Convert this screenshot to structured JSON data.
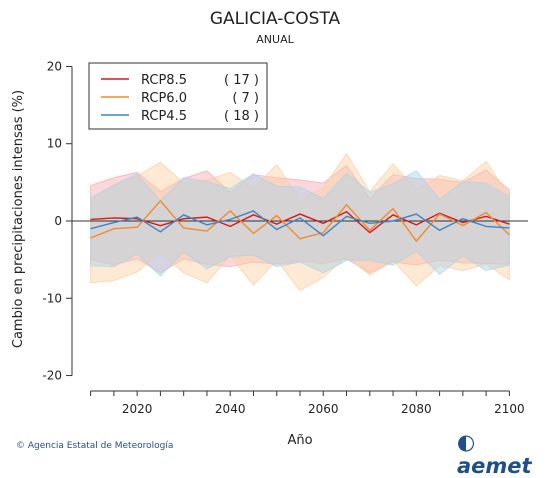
{
  "chart_data": {
    "type": "line",
    "title": "GALICIA-COSTA",
    "subtitle": "ANUAL",
    "xlabel": "Año",
    "ylabel": "Cambio en precipitaciones intensas (%)",
    "xlim": [
      2006,
      2104
    ],
    "ylim": [
      -22,
      22
    ],
    "xticks": [
      2020,
      2040,
      2060,
      2080,
      2100
    ],
    "yticks": [
      -20,
      -10,
      0,
      10,
      20
    ],
    "legend_position": "top-left",
    "series": [
      {
        "name": "RCP8.5",
        "count": "( 17 )",
        "color": "#d7191c",
        "band_color": "#f4a6b4",
        "x": [
          2010,
          2015,
          2020,
          2025,
          2030,
          2035,
          2040,
          2045,
          2050,
          2055,
          2060,
          2065,
          2070,
          2075,
          2080,
          2085,
          2090,
          2095,
          2100
        ],
        "values": [
          0.2,
          0.4,
          0.3,
          -0.6,
          0.3,
          0.5,
          -0.7,
          0.8,
          -0.4,
          0.9,
          -0.3,
          1.2,
          -1.5,
          0.8,
          -0.5,
          1.0,
          -0.2,
          0.6,
          -0.4
        ]
      },
      {
        "name": "RCP6.0",
        "count": "(  7 )",
        "color": "#f28a2e",
        "band_color": "#fbcf9f",
        "x": [
          2010,
          2015,
          2020,
          2025,
          2030,
          2035,
          2040,
          2045,
          2050,
          2055,
          2060,
          2065,
          2070,
          2075,
          2080,
          2085,
          2090,
          2095,
          2100
        ],
        "values": [
          -2.2,
          -1.0,
          -0.8,
          2.6,
          -0.9,
          -1.3,
          1.3,
          -1.6,
          0.7,
          -2.3,
          -1.5,
          2.1,
          -1.2,
          1.6,
          -2.6,
          0.9,
          -0.6,
          1.1,
          -1.8
        ]
      },
      {
        "name": "RCP4.5",
        "count": "( 18 )",
        "color": "#3d85c6",
        "band_color": "#a9d3e8",
        "x": [
          2010,
          2015,
          2020,
          2025,
          2030,
          2035,
          2040,
          2045,
          2050,
          2055,
          2060,
          2065,
          2070,
          2075,
          2080,
          2085,
          2090,
          2095,
          2100
        ],
        "values": [
          -1.0,
          -0.2,
          0.5,
          -1.4,
          0.8,
          -0.5,
          0.2,
          1.3,
          -1.1,
          0.4,
          -1.9,
          0.6,
          -0.3,
          0.0,
          0.9,
          -1.2,
          0.3,
          -0.7,
          -0.9
        ]
      }
    ]
  },
  "footer": {
    "credit": "© Agencia Estatal de Meteorología",
    "logo_text": "aemet"
  }
}
